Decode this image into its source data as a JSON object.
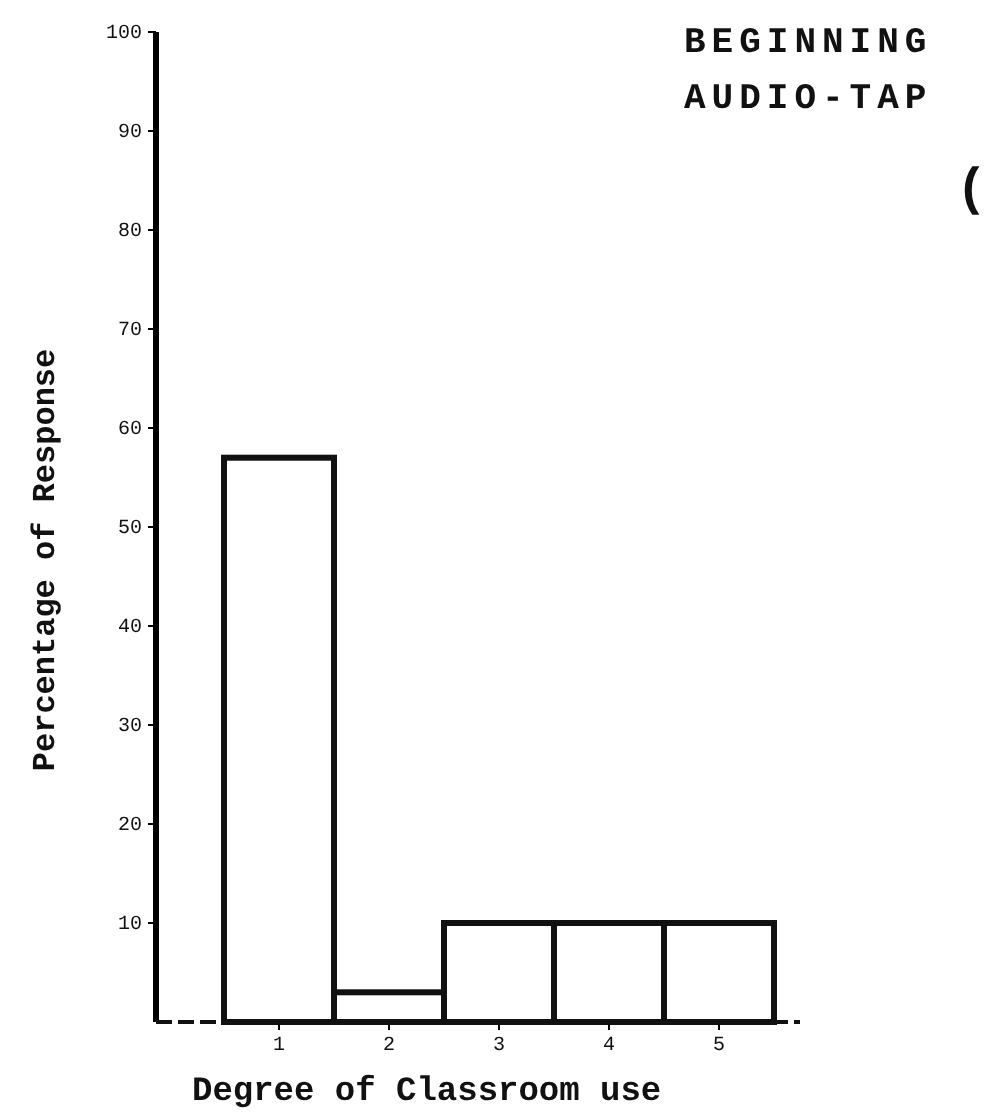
{
  "chart_data": {
    "type": "bar",
    "title": "BEGINNING",
    "subtitle": "AUDIO-TAP",
    "annotations": [
      "("
    ],
    "xlabel": "Degree of Classroom use",
    "ylabel": "Percentage of Response",
    "categories": [
      "1",
      "2",
      "3",
      "4",
      "5"
    ],
    "values": [
      57,
      3,
      10,
      10,
      10
    ],
    "color": "#ffffff",
    "ylim": [
      0,
      100
    ],
    "yticks": [
      10,
      20,
      30,
      40,
      50,
      60,
      70,
      80,
      90,
      100
    ],
    "grid": false
  }
}
